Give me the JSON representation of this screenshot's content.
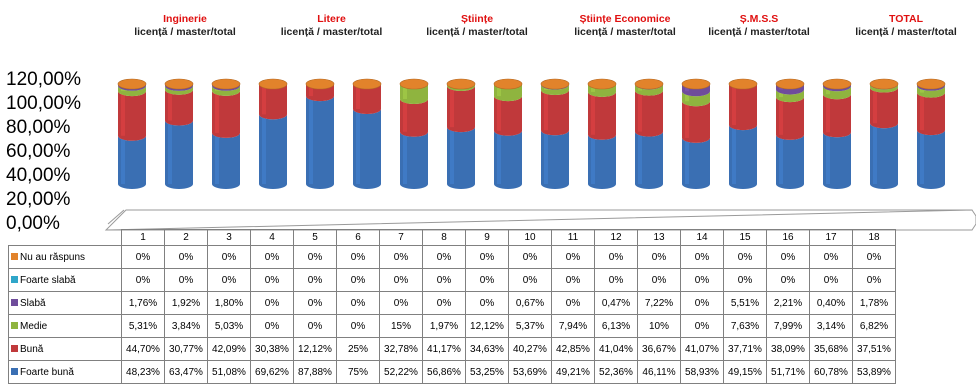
{
  "groups": [
    {
      "name": "Inginerie",
      "sub": "licență / master/total"
    },
    {
      "name": "Litere",
      "sub": "licență / master/total"
    },
    {
      "name": "Științe",
      "sub": "licență / master/total"
    },
    {
      "name": "Științe Economice",
      "sub": "licență / master/total"
    },
    {
      "name": "Ș.M.S.S",
      "sub": "licență / master/total"
    },
    {
      "name": "TOTAL",
      "sub": "licență / master/total"
    }
  ],
  "colors": {
    "foarte_buna": "#3a6fb3",
    "buna": "#c0393b",
    "medie": "#8fb43f",
    "slaba": "#6f4c9b",
    "foarte_slaba": "#2fa6c9",
    "nu_au": "#e2832b"
  },
  "chart_data": {
    "type": "bar",
    "stacked": true,
    "categories": [
      "1",
      "2",
      "3",
      "4",
      "5",
      "6",
      "7",
      "8",
      "9",
      "10",
      "11",
      "12",
      "13",
      "14",
      "15",
      "16",
      "17",
      "18"
    ],
    "yticks": [
      "120,00%",
      "100,00%",
      "80,00%",
      "60,00%",
      "40,00%",
      "20,00%",
      "0,00%"
    ],
    "ylim": [
      0,
      120
    ],
    "series": [
      {
        "name": "Nu au răspuns",
        "key": "nu_au",
        "values": [
          0,
          0,
          0,
          0,
          0,
          0,
          0,
          0,
          0,
          0,
          0,
          0,
          0,
          0,
          0,
          0,
          0,
          0
        ],
        "labels": [
          "0%",
          "0%",
          "0%",
          "0%",
          "0%",
          "0%",
          "0%",
          "0%",
          "0%",
          "0%",
          "0%",
          "0%",
          "0%",
          "0%",
          "0%",
          "0%",
          "0%",
          "0%"
        ]
      },
      {
        "name": "Foarte slabă",
        "key": "foarte_slaba",
        "values": [
          0,
          0,
          0,
          0,
          0,
          0,
          0,
          0,
          0,
          0,
          0,
          0,
          0,
          0,
          0,
          0,
          0,
          0
        ],
        "labels": [
          "0%",
          "0%",
          "0%",
          "0%",
          "0%",
          "0%",
          "0%",
          "0%",
          "0%",
          "0%",
          "0%",
          "0%",
          "0%",
          "0%",
          "0%",
          "0%",
          "0%",
          "0%"
        ]
      },
      {
        "name": "Slabă",
        "key": "slaba",
        "values": [
          1.76,
          1.92,
          1.8,
          0,
          0,
          0,
          0,
          0,
          0,
          0.67,
          0,
          0.47,
          7.22,
          0,
          5.51,
          2.21,
          0.4,
          1.78
        ],
        "labels": [
          "1,76%",
          "1,92%",
          "1,80%",
          "0%",
          "0%",
          "0%",
          "0%",
          "0%",
          "0%",
          "0,67%",
          "0%",
          "0,47%",
          "7,22%",
          "0%",
          "5,51%",
          "2,21%",
          "0,40%",
          "1,78%"
        ]
      },
      {
        "name": "Medie",
        "key": "medie",
        "values": [
          5.31,
          3.84,
          5.03,
          0,
          0,
          0,
          15,
          1.97,
          12.12,
          5.37,
          7.94,
          6.13,
          10,
          0,
          7.63,
          7.99,
          3.14,
          6.82
        ],
        "labels": [
          "5,31%",
          "3,84%",
          "5,03%",
          "0%",
          "0%",
          "0%",
          "15%",
          "1,97%",
          "12,12%",
          "5,37%",
          "7,94%",
          "6,13%",
          "10%",
          "0%",
          "7,63%",
          "7,99%",
          "3,14%",
          "6,82%"
        ]
      },
      {
        "name": "Bună",
        "key": "buna",
        "values": [
          44.7,
          30.77,
          42.09,
          30.38,
          12.12,
          25,
          32.78,
          41.17,
          34.63,
          40.27,
          42.85,
          41.04,
          36.67,
          41.07,
          37.71,
          38.09,
          35.68,
          37.51
        ],
        "labels": [
          "44,70%",
          "30,77%",
          "42,09%",
          "30,38%",
          "12,12%",
          "25%",
          "32,78%",
          "41,17%",
          "34,63%",
          "40,27%",
          "42,85%",
          "41,04%",
          "36,67%",
          "41,07%",
          "37,71%",
          "38,09%",
          "35,68%",
          "37,51%"
        ]
      },
      {
        "name": "Foarte bună",
        "key": "foarte_buna",
        "values": [
          48.23,
          63.47,
          51.08,
          69.62,
          87.88,
          75,
          52.22,
          56.86,
          53.25,
          53.69,
          49.21,
          52.36,
          46.11,
          58.93,
          49.15,
          51.71,
          60.78,
          53.89
        ],
        "labels": [
          "48,23%",
          "63,47%",
          "51,08%",
          "69,62%",
          "87,88%",
          "75%",
          "52,22%",
          "56,86%",
          "53,25%",
          "53,69%",
          "49,21%",
          "52,36%",
          "46,11%",
          "58,93%",
          "49,15%",
          "51,71%",
          "60,78%",
          "53,89%"
        ]
      }
    ]
  }
}
